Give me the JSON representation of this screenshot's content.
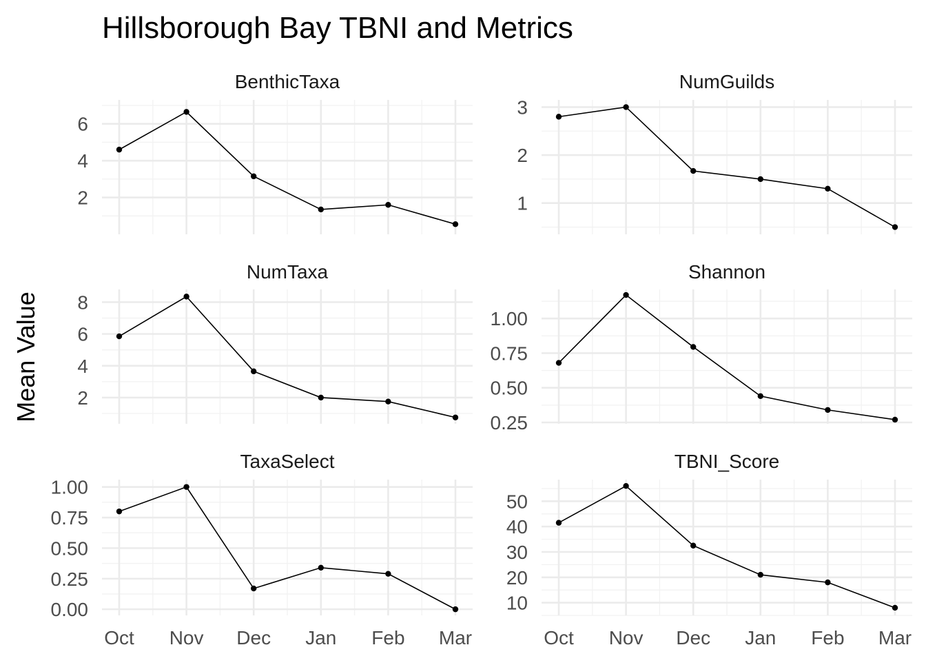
{
  "title": "Hillsborough Bay TBNI and Metrics",
  "ylabel": "Mean Value",
  "chart_data": {
    "type": "line",
    "categories": [
      "Oct",
      "Nov",
      "Dec",
      "Jan",
      "Feb",
      "Mar"
    ],
    "panels": [
      {
        "name": "BenthicTaxa",
        "values": [
          4.6,
          6.65,
          3.15,
          1.35,
          1.6,
          0.55
        ],
        "ylim": [
          0.0,
          7.3
        ],
        "yticks": [
          2,
          4,
          6
        ],
        "ytick_labels": [
          "2",
          "4",
          "6"
        ]
      },
      {
        "name": "NumGuilds",
        "values": [
          2.8,
          3.0,
          1.67,
          1.5,
          1.3,
          0.5
        ],
        "ylim": [
          0.35,
          3.15
        ],
        "yticks": [
          1,
          2,
          3
        ],
        "ytick_labels": [
          "1",
          "2",
          "3"
        ]
      },
      {
        "name": "NumTaxa",
        "values": [
          5.85,
          8.35,
          3.65,
          2.0,
          1.75,
          0.75
        ],
        "ylim": [
          0.35,
          8.8
        ],
        "yticks": [
          2,
          4,
          6,
          8
        ],
        "ytick_labels": [
          "2",
          "4",
          "6",
          "8"
        ]
      },
      {
        "name": "Shannon",
        "values": [
          0.68,
          1.17,
          0.795,
          0.44,
          0.34,
          0.27
        ],
        "ylim": [
          0.24,
          1.21
        ],
        "yticks": [
          0.25,
          0.5,
          0.75,
          1.0
        ],
        "ytick_labels": [
          "0.25",
          "0.50",
          "0.75",
          "1.00"
        ]
      },
      {
        "name": "TaxaSelect",
        "values": [
          0.8,
          1.0,
          0.17,
          0.34,
          0.29,
          0.0
        ],
        "ylim": [
          -0.05,
          1.06
        ],
        "yticks": [
          0.0,
          0.25,
          0.5,
          0.75,
          1.0
        ],
        "ytick_labels": [
          "0.00",
          "0.25",
          "0.50",
          "0.75",
          "1.00"
        ]
      },
      {
        "name": "TBNI_Score",
        "values": [
          41.5,
          56.0,
          32.5,
          21.0,
          18.0,
          8.0
        ],
        "ylim": [
          5.0,
          58.5
        ],
        "yticks": [
          10,
          20,
          30,
          40,
          50
        ],
        "ytick_labels": [
          "10",
          "20",
          "30",
          "40",
          "50"
        ]
      }
    ],
    "grid": true,
    "line_color": "#000000",
    "point_color": "#000000",
    "grid_color": "#ebebeb",
    "text_color": "#4d4d4d"
  }
}
